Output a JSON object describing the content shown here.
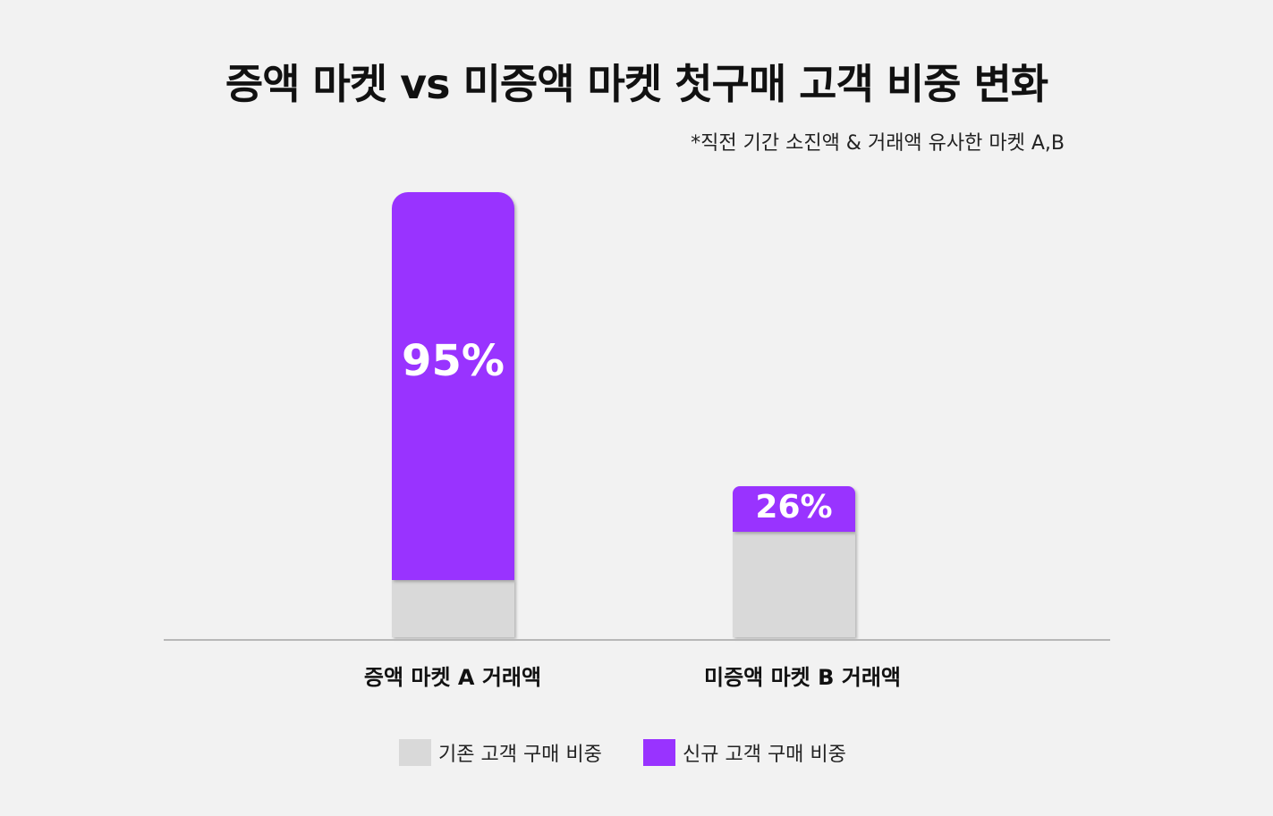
{
  "chart_data": {
    "type": "bar",
    "stacked": true,
    "title": "증액 마켓 vs 미증액 마켓 첫구매 고객 비중 변화",
    "subtitle": "*직전 기간 소진액  & 거래액 유사한 마켓 A,B",
    "categories": [
      "증액 마켓 A 거래액",
      "미증액 마켓 B 거래액"
    ],
    "series": [
      {
        "name": "기존 고객 구매 비중",
        "color": "#d9d9d9",
        "values": [
          5,
          74
        ]
      },
      {
        "name": "신규 고객 구매 비중",
        "color": "#9933ff",
        "values": [
          95,
          26
        ]
      }
    ],
    "data_labels": [
      "95%",
      "26%"
    ],
    "unit": "%",
    "legend_position": "bottom",
    "grid": false
  }
}
